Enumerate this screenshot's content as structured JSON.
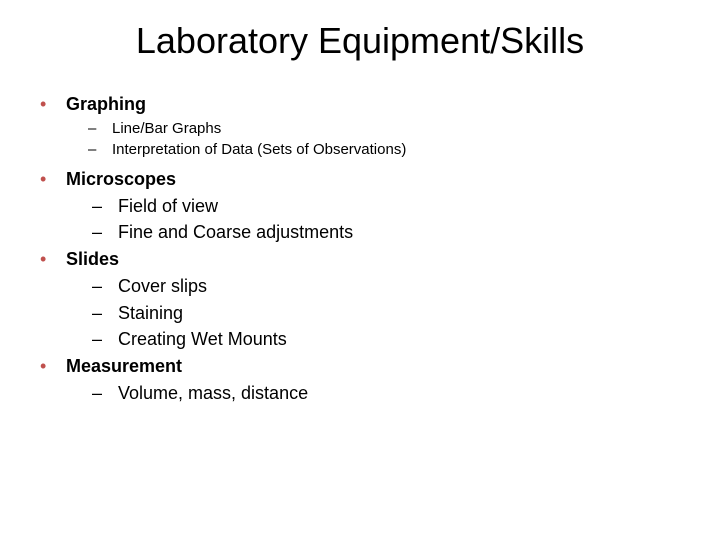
{
  "title": "Laboratory Equipment/Skills",
  "sections": [
    {
      "heading": "Graphing",
      "size": "small",
      "items": [
        "Line/Bar Graphs",
        "Interpretation of Data (Sets of Observations)"
      ]
    },
    {
      "heading": "Microscopes",
      "size": "medium",
      "items": [
        "Field of view",
        "Fine and Coarse adjustments"
      ]
    },
    {
      "heading": "Slides",
      "size": "medium",
      "items": [
        "Cover slips",
        "Staining",
        "Creating Wet Mounts"
      ]
    },
    {
      "heading": "Measurement",
      "size": "medium",
      "items": [
        "Volume, mass, distance"
      ]
    }
  ],
  "colors": {
    "bullet_accent": "#c0504d",
    "text": "#000000",
    "background": "#ffffff"
  },
  "typography": {
    "title_fontsize": 36,
    "heading_fontsize": 18,
    "subitem_small_fontsize": 15,
    "subitem_medium_fontsize": 18,
    "font_family": "Arial"
  }
}
